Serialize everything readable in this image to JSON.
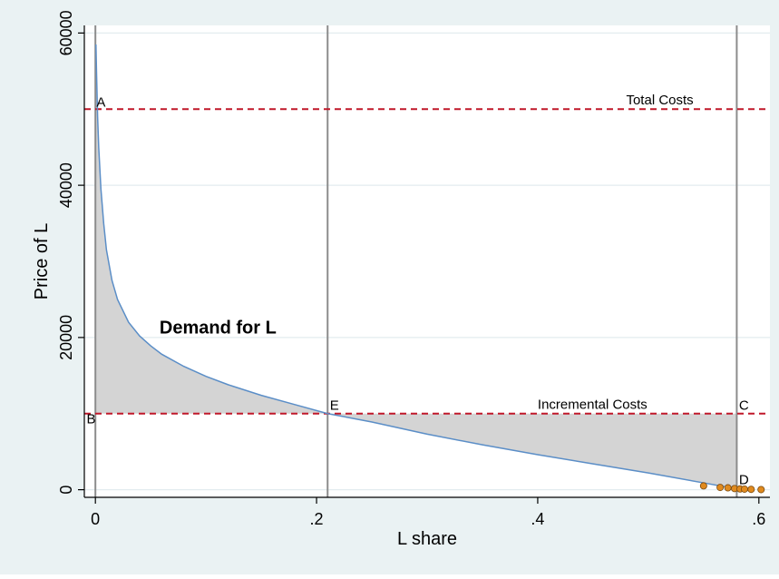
{
  "chart_data": {
    "type": "area",
    "xlabel": "L share",
    "ylabel": "Price of L",
    "xlim": [
      -0.01,
      0.61
    ],
    "ylim": [
      -1000,
      61000
    ],
    "x_ticks": [
      0,
      0.2,
      0.4,
      0.6
    ],
    "x_tick_labels": [
      "0",
      ".2",
      ".4",
      ".6"
    ],
    "y_ticks": [
      0,
      20000,
      40000,
      60000
    ],
    "y_tick_labels": [
      "0",
      "20000",
      "40000",
      "60000"
    ],
    "grid": true,
    "vertical_lines": [
      0,
      0.21,
      0.58
    ],
    "reference_lines": [
      {
        "label": "Total Costs",
        "y": 50000,
        "color": "#c0182a"
      },
      {
        "label": "Incremental Costs",
        "y": 10000,
        "color": "#c0182a"
      }
    ],
    "series": [
      {
        "name": "Demand for L",
        "color": "#5b8ec7",
        "x": [
          0.0005,
          0.001,
          0.002,
          0.003,
          0.005,
          0.0075,
          0.01,
          0.015,
          0.02,
          0.03,
          0.04,
          0.05,
          0.06,
          0.08,
          0.1,
          0.12,
          0.15,
          0.18,
          0.21,
          0.25,
          0.3,
          0.35,
          0.4,
          0.45,
          0.5,
          0.55,
          0.58
        ],
        "y": [
          58500,
          55000,
          49000,
          45000,
          39500,
          35000,
          31500,
          27500,
          25000,
          22000,
          20200,
          18900,
          17800,
          16200,
          14900,
          13800,
          12400,
          11200,
          10000,
          8900,
          7300,
          5900,
          4600,
          3400,
          2200,
          900,
          100
        ]
      }
    ],
    "scatter_points": {
      "color": "#e08a1e",
      "x": [
        0.55,
        0.565,
        0.572,
        0.578,
        0.583,
        0.587,
        0.593,
        0.602
      ],
      "y": [
        500,
        300,
        250,
        150,
        100,
        80,
        50,
        20
      ]
    },
    "annotations": [
      {
        "text": "A",
        "x": 0.001,
        "y": 50300
      },
      {
        "text": "B",
        "x": -0.008,
        "y": 8700
      },
      {
        "text": "C",
        "x": 0.582,
        "y": 10500
      },
      {
        "text": "D",
        "x": 0.582,
        "y": 700
      },
      {
        "text": "E",
        "x": 0.212,
        "y": 10500
      },
      {
        "text": "Demand for L",
        "x": 0.058,
        "y": 20500
      },
      {
        "text": "Total Costs",
        "x": 0.48,
        "y": 50600
      },
      {
        "text": "Incremental Costs",
        "x": 0.4,
        "y": 10600
      }
    ]
  }
}
